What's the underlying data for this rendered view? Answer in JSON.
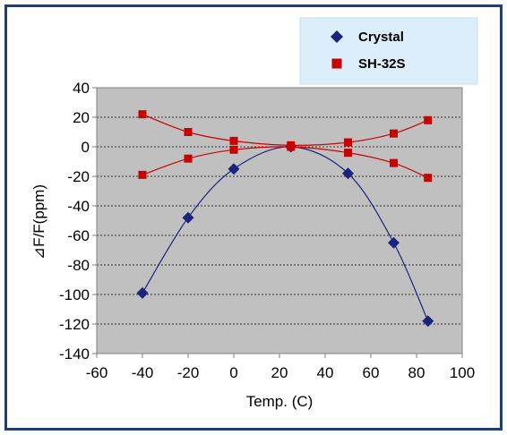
{
  "chart_data": {
    "type": "scatter",
    "title": "",
    "xlabel": "Temp. (C)",
    "ylabel": "⊿F/F(ppm)",
    "xlim": [
      -60,
      100
    ],
    "ylim": [
      -140,
      40
    ],
    "xticks": [
      "-60",
      "-40",
      "-20",
      "0",
      "20",
      "40",
      "60",
      "80",
      "100"
    ],
    "yticks": [
      "40",
      "20",
      "0",
      "-20",
      "-40",
      "-60",
      "-80",
      "-100",
      "-120",
      "-140"
    ],
    "grid": "horizontal dashed",
    "legend_position": "top-right",
    "series": [
      {
        "name": "Crystal",
        "color": "#1a237e",
        "marker": "diamond",
        "points": [
          [
            -40,
            -99
          ],
          [
            -20,
            -48
          ],
          [
            0,
            -15
          ],
          [
            25,
            0
          ],
          [
            50,
            -18
          ],
          [
            70,
            -65
          ],
          [
            85,
            -118
          ]
        ]
      },
      {
        "name": "SH-32S",
        "color": "#cc0000",
        "marker": "square",
        "points": [
          [
            -40,
            22
          ],
          [
            -20,
            10
          ],
          [
            0,
            4
          ],
          [
            25,
            1
          ],
          [
            50,
            3
          ],
          [
            70,
            9
          ],
          [
            85,
            18
          ]
        ]
      },
      {
        "name": "",
        "color": "#cc0000",
        "marker": "square",
        "points": [
          [
            -40,
            -19
          ],
          [
            -20,
            -8
          ],
          [
            0,
            -2
          ],
          [
            25,
            0
          ],
          [
            50,
            -4
          ],
          [
            70,
            -11
          ],
          [
            85,
            -21
          ]
        ]
      }
    ]
  }
}
